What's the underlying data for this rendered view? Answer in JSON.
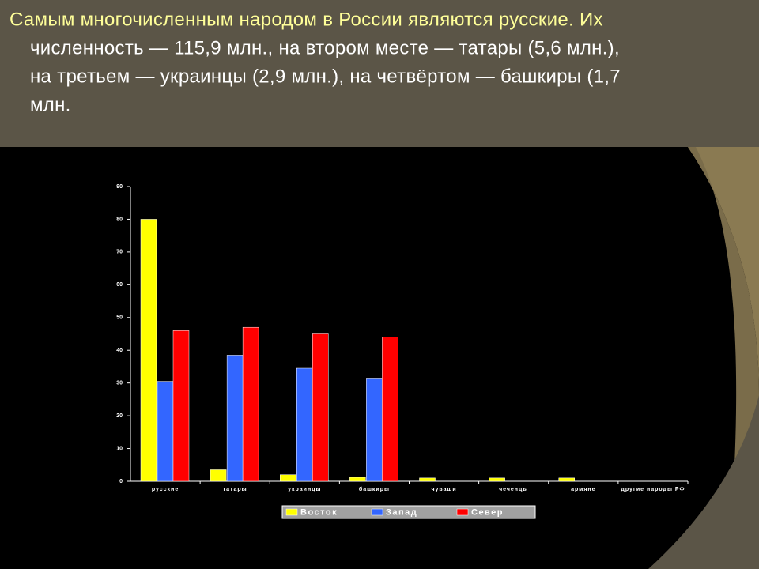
{
  "title_lines": [
    "Самым многочисленным народом в России являются русские. Их",
    "численность — 115,9 млн., на втором месте — татары (5,6 млн.),",
    "на третьем — украинцы (2,9 млн.), на четвёртом — башкиры (1,7",
    "млн."
  ],
  "chart_data": {
    "type": "bar",
    "categories": [
      "русские",
      "татары",
      "украинцы",
      "башкиры",
      "чуваши",
      "чеченцы",
      "армяне",
      "другие народы РФ"
    ],
    "series": [
      {
        "name": "Восток",
        "color": "#ffff00",
        "values": [
          80,
          3.5,
          2,
          1.2,
          1,
          1,
          1,
          0
        ]
      },
      {
        "name": "Запад",
        "color": "#3366ff",
        "values": [
          30.5,
          38.5,
          34.5,
          31.5,
          0,
          0,
          0,
          0
        ]
      },
      {
        "name": "Север",
        "color": "#ff0000",
        "values": [
          46,
          47,
          45,
          44,
          0,
          0,
          0,
          0
        ]
      }
    ],
    "ylim": [
      0,
      90
    ],
    "yticks": [
      0,
      10,
      20,
      30,
      40,
      50,
      60,
      70,
      80,
      90
    ],
    "legend": "bottom"
  }
}
